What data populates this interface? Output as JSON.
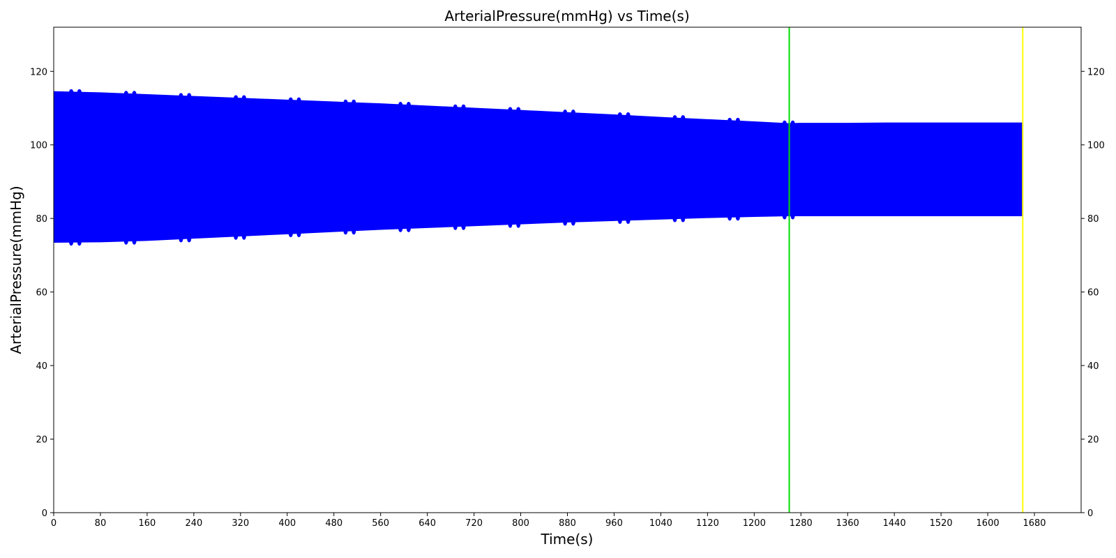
{
  "chart_data": {
    "type": "area",
    "title": "ArterialPressure(mmHg) vs Time(s)",
    "xlabel": "Time(s)",
    "ylabel": "ArterialPressure(mmHg)",
    "xlim": [
      0,
      1760
    ],
    "ylim": [
      0,
      132
    ],
    "x_ticks": [
      0,
      80,
      160,
      240,
      320,
      400,
      480,
      560,
      640,
      720,
      800,
      880,
      960,
      1040,
      1120,
      1200,
      1280,
      1360,
      1440,
      1520,
      1600,
      1680
    ],
    "y_ticks": [
      0,
      20,
      40,
      60,
      80,
      100,
      120
    ],
    "right_axis_ticks": true,
    "grid": false,
    "series": [
      {
        "color": "#0000ff",
        "x": [
          0,
          80,
          160,
          240,
          320,
          400,
          480,
          560,
          640,
          720,
          800,
          880,
          960,
          1040,
          1120,
          1200,
          1260,
          1280,
          1360,
          1440,
          1520,
          1600,
          1660
        ],
        "upper": [
          114.5,
          114.2,
          113.7,
          113.2,
          112.7,
          112.2,
          111.7,
          111.2,
          110.6,
          110.0,
          109.4,
          108.8,
          108.2,
          107.5,
          106.9,
          106.3,
          105.8,
          105.9,
          105.9,
          106.0,
          106.0,
          106.0,
          106.0
        ],
        "lower": [
          73.5,
          73.6,
          74.0,
          74.6,
          75.2,
          75.8,
          76.4,
          77.0,
          77.5,
          78.0,
          78.5,
          79.0,
          79.4,
          79.8,
          80.2,
          80.5,
          80.7,
          80.7,
          80.7,
          80.7,
          80.7,
          80.7,
          80.7
        ]
      }
    ],
    "vertical_lines": [
      {
        "x": 1260,
        "color": "#00dd00"
      },
      {
        "x": 1660,
        "color": "#ffff00"
      }
    ]
  }
}
